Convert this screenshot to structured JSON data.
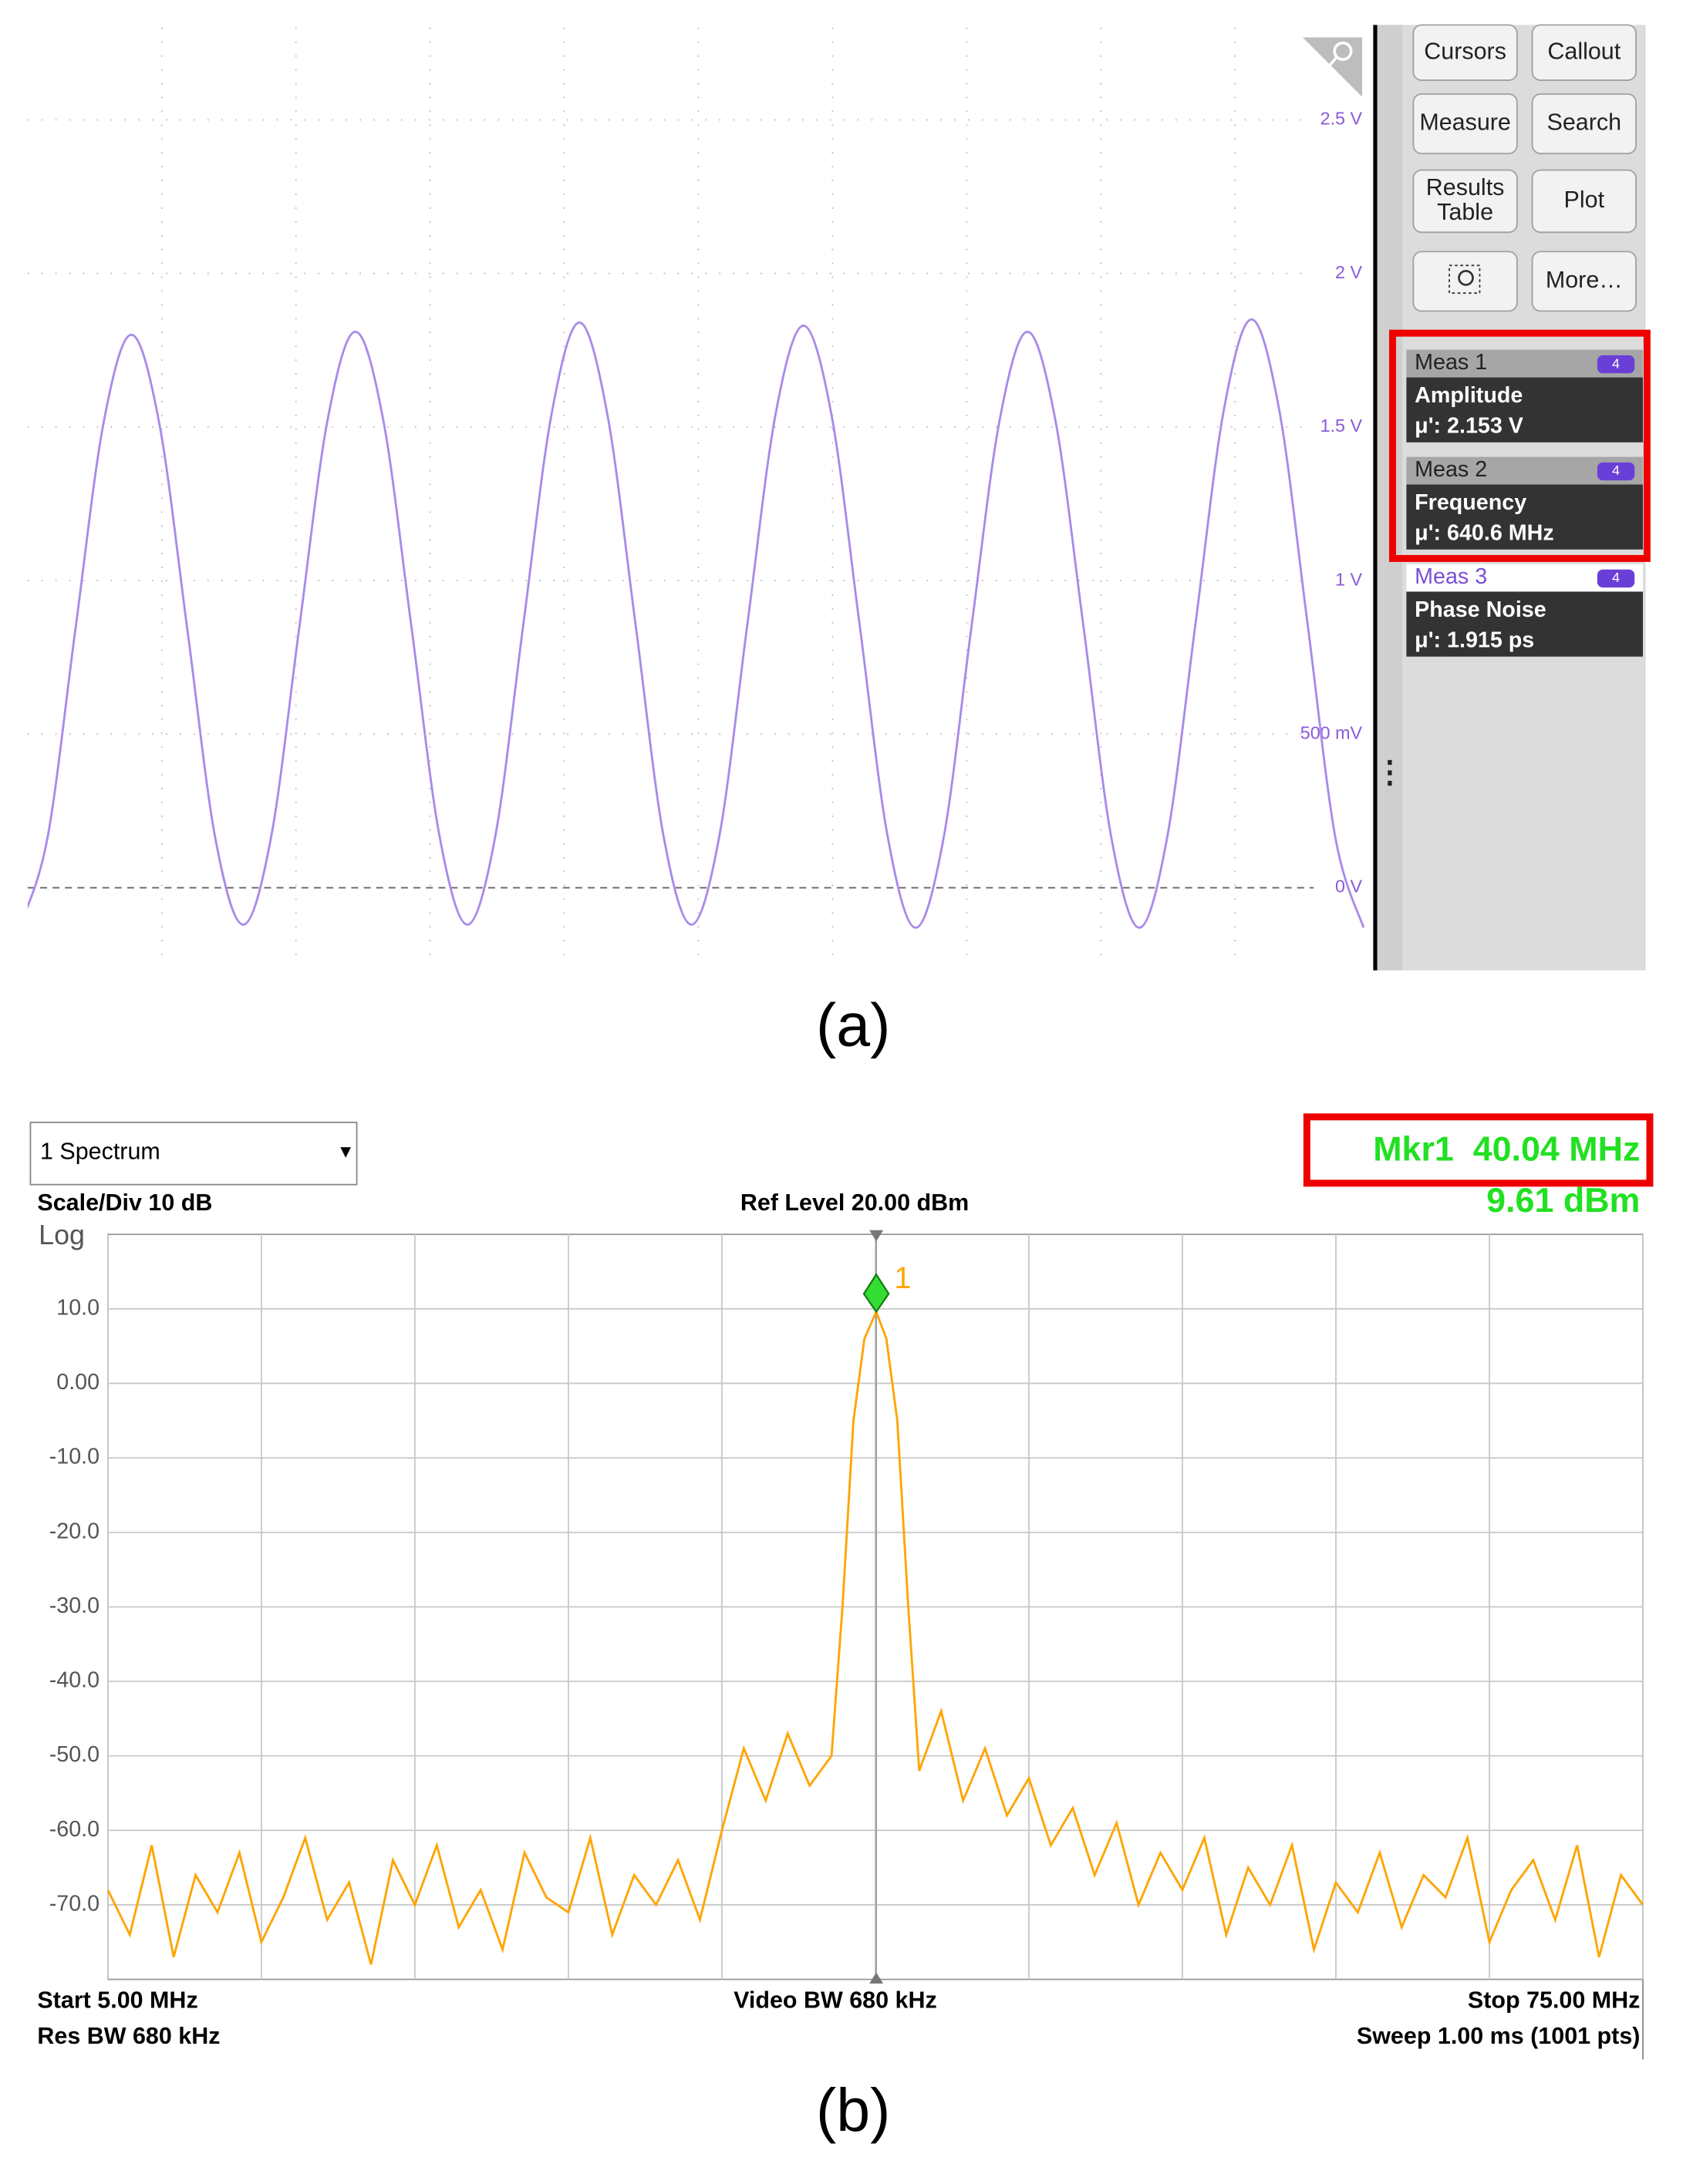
{
  "chart_data": [
    {
      "type": "line",
      "caption": "(a)",
      "color": "#a98be8",
      "values": [
        -0.13,
        0.16,
        0.84,
        1.51,
        1.8,
        1.51,
        0.84,
        0.16,
        -0.12,
        0.17,
        0.85,
        1.52,
        1.81,
        1.52,
        0.85,
        0.17,
        -0.12,
        0.17,
        0.86,
        1.54,
        1.84,
        1.54,
        0.86,
        0.17,
        -0.12,
        0.17,
        0.86,
        1.54,
        1.83,
        1.54,
        0.86,
        0.17,
        -0.13,
        0.16,
        0.85,
        1.52,
        1.81,
        1.52,
        0.85,
        0.16,
        -0.13,
        0.17,
        0.86,
        1.55,
        1.85,
        1.55,
        0.86,
        0.16,
        -0.13
      ],
      "ylim": [
        -0.26,
        2.8
      ],
      "yticks": [
        {
          "value": 0,
          "label": "0 V"
        },
        {
          "value": 0.5,
          "label": "500 mV"
        },
        {
          "value": 1,
          "label": "1 V"
        },
        {
          "value": 1.5,
          "label": "1.5 V"
        },
        {
          "value": 2,
          "label": "2 V"
        },
        {
          "value": 2.5,
          "label": "2.5 V"
        }
      ],
      "grid": true,
      "buttons": [
        "Cursors",
        "Callout",
        "Measure",
        "Search",
        "Results Table",
        "Plot",
        "More…"
      ],
      "measurements": [
        {
          "name": "Meas 1",
          "source": "4",
          "label": "Amplitude",
          "result": "μ': 2.153 V"
        },
        {
          "name": "Meas 2",
          "source": "4",
          "label": "Frequency",
          "result": "μ': 640.6 MHz"
        },
        {
          "name": "Meas 3",
          "source": "4",
          "label": "Phase Noise",
          "result": "μ': 1.915 ps"
        }
      ]
    },
    {
      "type": "line",
      "caption": "(b)",
      "color": "#ffa500",
      "dropdown": "1 Spectrum",
      "scale_label": "Scale/Div 10 dB",
      "ref_level": "Ref Level 20.00 dBm",
      "y_scale_label": "Log",
      "marker_readout": [
        "Mkr1  40.04 MHz",
        "9.61 dBm"
      ],
      "footer": [
        "Start 5.00 MHz",
        "Video BW 680 kHz",
        "Stop 75.00 MHz",
        "Res BW 680 kHz",
        "Sweep 1.00 ms (1001 pts)"
      ],
      "x": [
        5,
        6,
        7,
        8,
        9,
        10,
        11,
        12,
        13,
        14,
        15,
        16,
        17,
        18,
        19,
        20,
        21,
        22,
        23,
        24,
        25,
        26,
        27,
        28,
        29,
        30,
        31,
        32,
        33,
        34,
        35,
        36,
        37,
        38,
        38.5,
        39,
        39.5,
        40.04,
        40.5,
        41,
        41.5,
        42,
        43,
        44,
        45,
        46,
        47,
        48,
        49,
        50,
        51,
        52,
        53,
        54,
        55,
        56,
        57,
        58,
        59,
        60,
        61,
        62,
        63,
        64,
        65,
        66,
        67,
        68,
        69,
        70,
        71,
        72,
        73,
        74,
        75
      ],
      "values": [
        -68,
        -74,
        -62,
        -77,
        -66,
        -71,
        -63,
        -75,
        -69,
        -61,
        -72,
        -67,
        -78,
        -64,
        -70,
        -62,
        -73,
        -68,
        -76,
        -63,
        -69,
        -71,
        -61,
        -74,
        -66,
        -70,
        -64,
        -72,
        -60,
        -49,
        -56,
        -47,
        -54,
        -50,
        -30,
        -5,
        6,
        9.61,
        6,
        -5,
        -30,
        -52,
        -44,
        -56,
        -49,
        -58,
        -53,
        -62,
        -57,
        -66,
        -59,
        -70,
        -63,
        -68,
        -61,
        -74,
        -65,
        -70,
        -62,
        -76,
        -67,
        -71,
        -63,
        -73,
        -66,
        -69,
        -61,
        -75,
        -68,
        -64,
        -72,
        -62,
        -77,
        -66,
        -70
      ],
      "xlim": [
        5,
        75
      ],
      "ylim": [
        -80,
        20
      ],
      "xticks": [
        5,
        12,
        19,
        26,
        33,
        40,
        47,
        54,
        61,
        68,
        75
      ],
      "yticks": [
        {
          "value": 10,
          "label": "10.0"
        },
        {
          "value": 0,
          "label": "0.00"
        },
        {
          "value": -10,
          "label": "-10.0"
        },
        {
          "value": -20,
          "label": "-20.0"
        },
        {
          "value": -30,
          "label": "-30.0"
        },
        {
          "value": -40,
          "label": "-40.0"
        },
        {
          "value": -50,
          "label": "-50.0"
        },
        {
          "value": -60,
          "label": "-60.0"
        },
        {
          "value": -70,
          "label": "-70.0"
        }
      ],
      "grid": true,
      "marker": {
        "x": 40.04,
        "value": 9.61,
        "label": "1",
        "color": "#33dd33"
      }
    }
  ]
}
